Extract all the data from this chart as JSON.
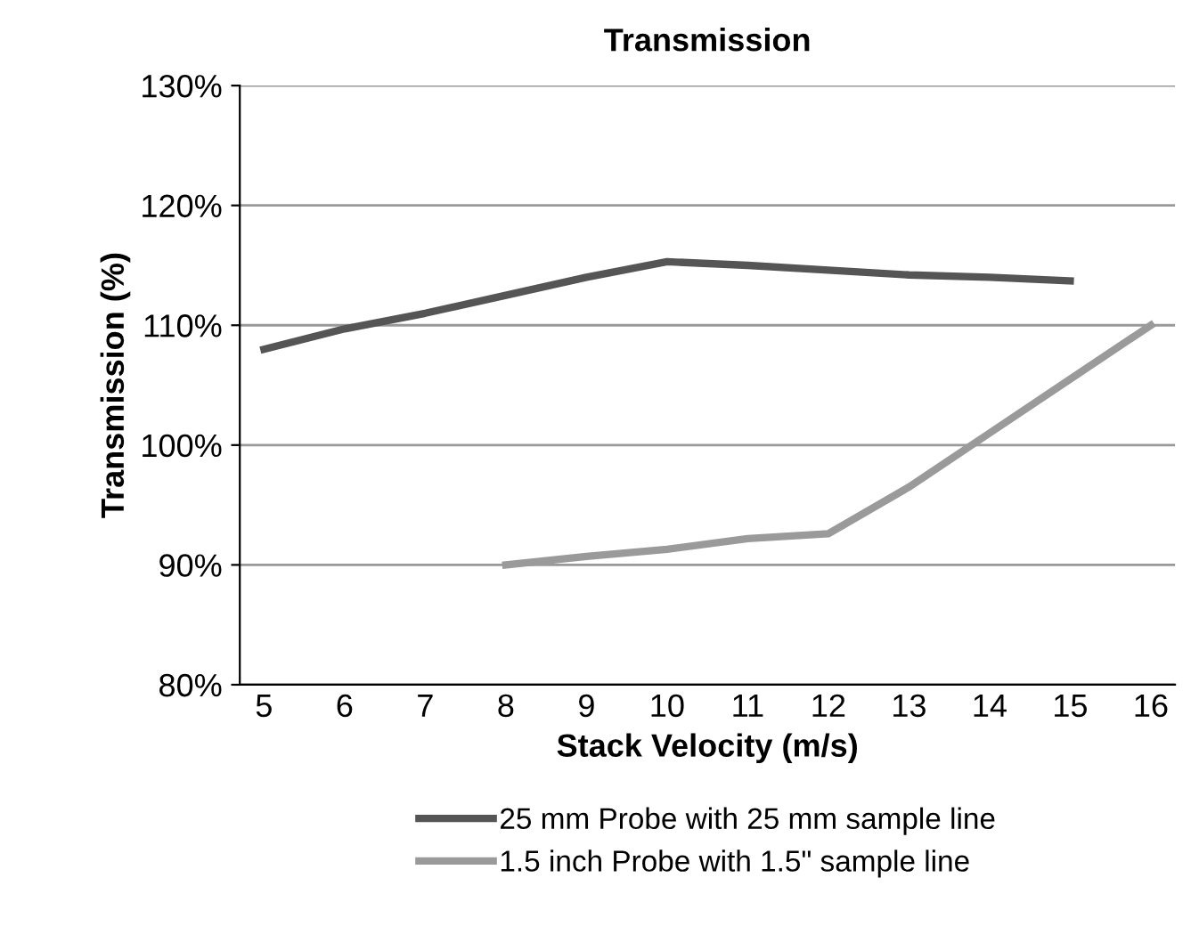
{
  "chart_data": {
    "type": "line",
    "title": "Transmission",
    "xlabel": "Stack Velocity (m/s)",
    "ylabel": "Transmission (%)",
    "categories": [
      "5",
      "6",
      "7",
      "8",
      "9",
      "10",
      "11",
      "12",
      "13",
      "14",
      "15",
      "16"
    ],
    "series": [
      {
        "name": "25 mm Probe with 25 mm sample line",
        "color": "#555555",
        "values": [
          108,
          109.7,
          111,
          112.5,
          114,
          115.3,
          115,
          114.6,
          114.2,
          114,
          113.7,
          null
        ]
      },
      {
        "name": "1.5 inch Probe with 1.5\" sample line",
        "color": "#9a9a9a",
        "values": [
          null,
          null,
          null,
          90,
          90.7,
          91.3,
          92.2,
          92.6,
          96.5,
          101,
          105.5,
          110
        ]
      }
    ],
    "ylim": [
      80,
      130
    ],
    "yticks": [
      {
        "value": 80,
        "label": "80%"
      },
      {
        "value": 90,
        "label": "90%"
      },
      {
        "value": 100,
        "label": "100%"
      },
      {
        "value": 110,
        "label": "110%"
      },
      {
        "value": 120,
        "label": "120%"
      },
      {
        "value": 130,
        "label": "130%"
      }
    ],
    "grid": "y",
    "legend": "bottom",
    "marker": "none",
    "line_style": "solid"
  }
}
